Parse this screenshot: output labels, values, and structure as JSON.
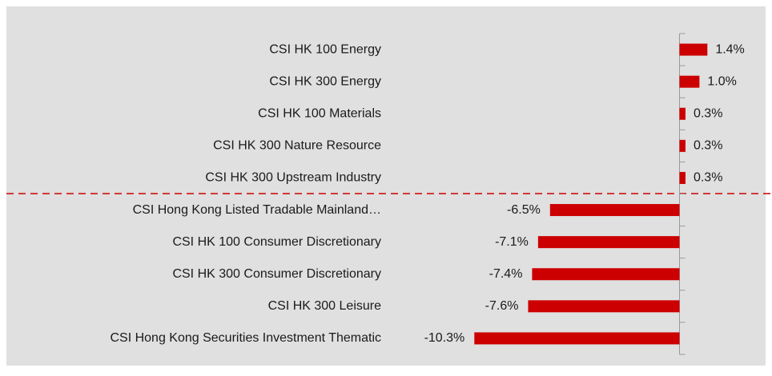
{
  "chart_data": {
    "type": "barh",
    "categories": [
      "CSI HK 100 Energy",
      "CSI HK 300 Energy",
      "CSI HK 100 Materials",
      "CSI HK 300 Nature Resource",
      "CSI HK 300 Upstream Industry",
      "CSI Hong Kong Listed Tradable Mainland…",
      "CSI HK 100 Consumer Discretionary",
      "CSI HK 300 Consumer Discretionary",
      "CSI HK 300 Leisure",
      "CSI Hong Kong Securities Investment Thematic"
    ],
    "values": [
      1.4,
      1.0,
      0.3,
      0.3,
      0.3,
      -6.5,
      -7.1,
      -7.4,
      -7.6,
      -10.3
    ],
    "value_labels": [
      "1.4%",
      "1.0%",
      "0.3%",
      "0.3%",
      "0.3%",
      "-6.5%",
      "-7.1%",
      "-7.4%",
      "-7.6%",
      "-10.3%"
    ],
    "color": "#cc0000",
    "xlim": [
      -12,
      4
    ]
  }
}
